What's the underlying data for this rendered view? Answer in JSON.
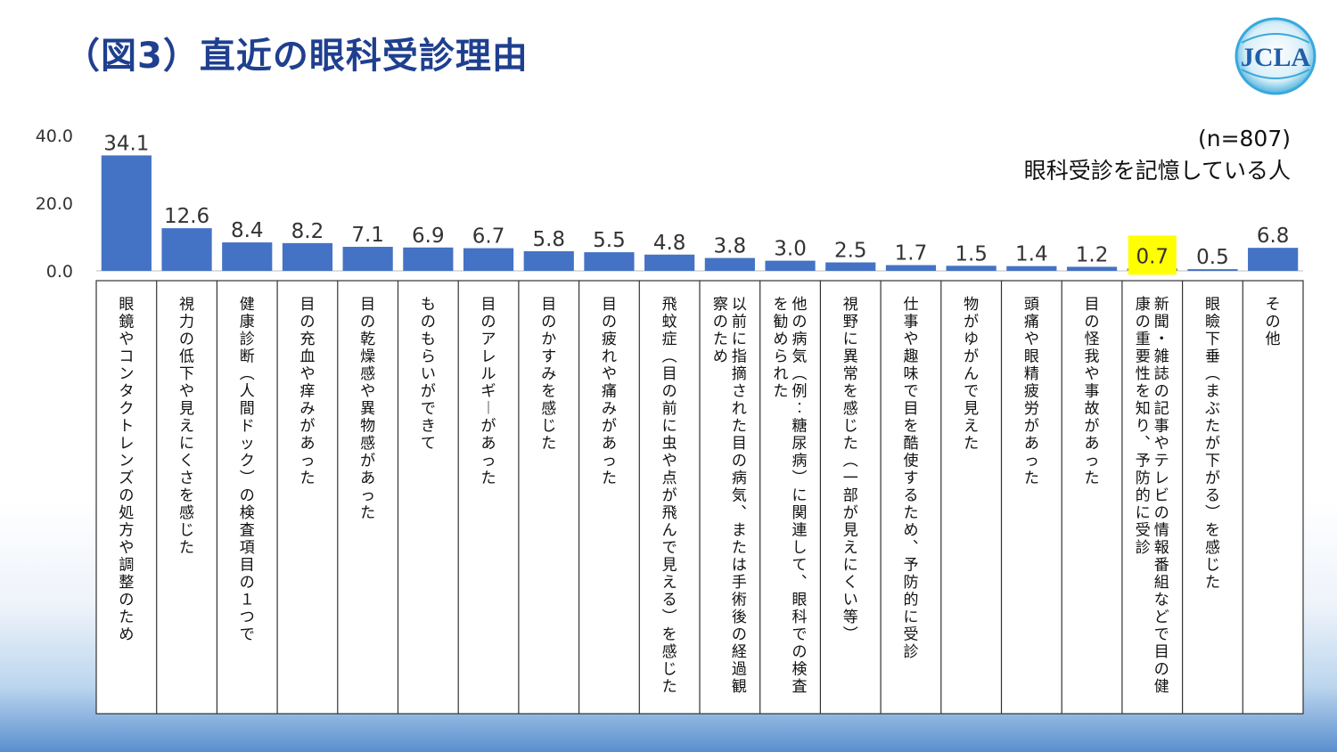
{
  "title": "（図3）直近の眼科受診理由",
  "logo_text": "JCLA",
  "note": {
    "line1": "(n=807)",
    "line2": "眼科受診を記憶している人"
  },
  "colors": {
    "bar": "#4472c4",
    "highlight": "#ffff00",
    "title": "#1f3f8f"
  },
  "chart_data": {
    "type": "bar",
    "title": "",
    "xlabel": "",
    "ylabel": "",
    "ylim": [
      0,
      40
    ],
    "yticks": [
      "40.0",
      "20.0",
      "0.0"
    ],
    "categories": [
      "眼鏡やコンタクトレンズの処方や調整のため",
      "視力の低下や見えにくさを感じた",
      "健康診断（人間ドック）の検査項目の１つで",
      "目の充血や痒みがあった",
      "目の乾燥感や異物感があった",
      "ものもらいができて",
      "目のアレルギーがあった",
      "目のかすみを感じた",
      "目の疲れや痛みがあった",
      "飛蚊症（目の前に虫や点が飛んで見える）を感じた",
      "以前に指摘された目の病気、または手術後の経過観察のため",
      "他の病気（例：糖尿病）に関連して、眼科での検査を勧められた",
      "視野に異常を感じた（一部が見えにくい等）",
      "仕事や趣味で目を酷使するため、予防的に受診",
      "物がゆがんで見えた",
      "頭痛や眼精疲労があった",
      "目の怪我や事故があった",
      "新聞・雑誌の記事やテレビの情報番組などで目の健康の重要性を知り、予防的に受診",
      "眼瞼下垂（まぶたが下がる）を感じた",
      "その他"
    ],
    "values": [
      34.1,
      12.6,
      8.4,
      8.2,
      7.1,
      6.9,
      6.7,
      5.8,
      5.5,
      4.8,
      3.8,
      3.0,
      2.5,
      1.7,
      1.5,
      1.4,
      1.2,
      0.7,
      0.5,
      6.8
    ],
    "value_labels": [
      "34.1",
      "12.6",
      "8.4",
      "8.2",
      "7.1",
      "6.9",
      "6.7",
      "5.8",
      "5.5",
      "4.8",
      "3.8",
      "3.0",
      "2.5",
      "1.7",
      "1.5",
      "1.4",
      "1.2",
      "0.7",
      "0.5",
      "6.8"
    ],
    "highlight_index": 17
  }
}
